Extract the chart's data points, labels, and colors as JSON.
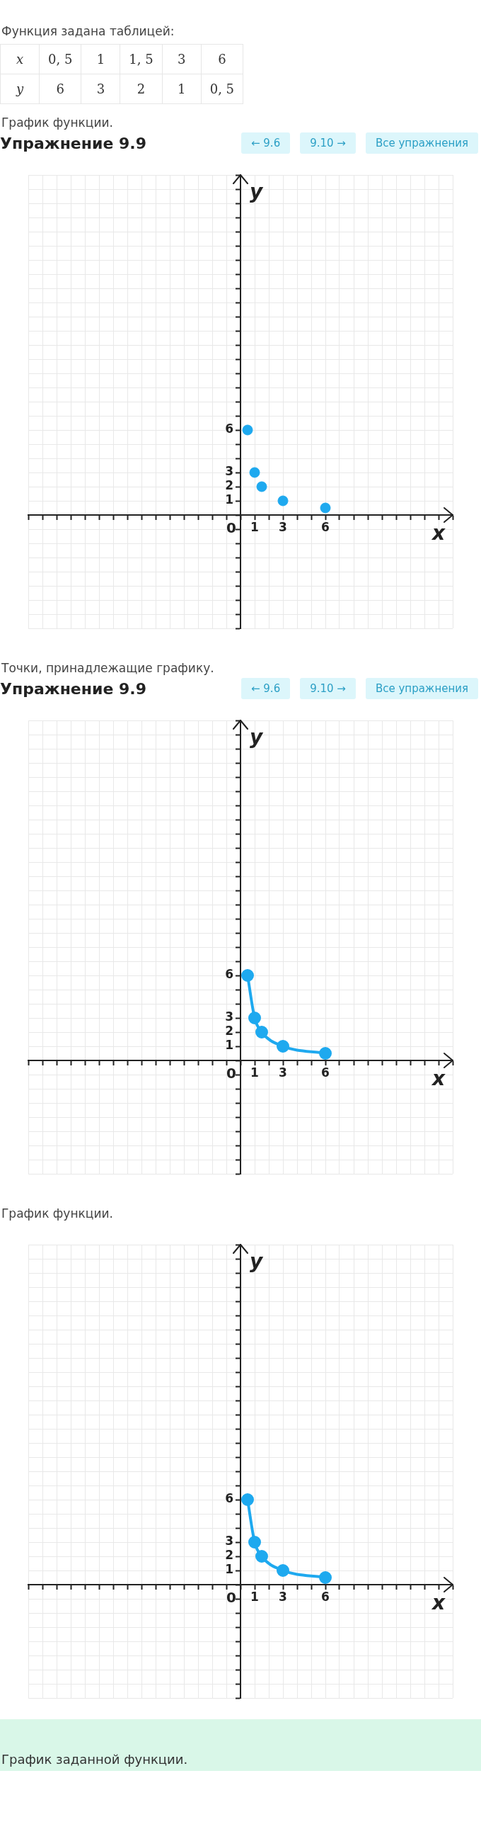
{
  "chart_data": [
    {
      "type": "other",
      "title": "Функция задана таблицей:",
      "xlabel": "x",
      "ylabel": "y",
      "categories": [
        "0, 5",
        "1",
        "1, 5",
        "3",
        "6"
      ],
      "annotations": [
        "6",
        "3",
        "2",
        "1",
        "0, 5",
        "График функции."
      ]
    },
    {
      "type": "scatter",
      "title": "Упражнение 9.9",
      "xlabel": "x",
      "ylabel": "y",
      "x": [
        0.5,
        1,
        1.5,
        3,
        6
      ],
      "values": [
        6,
        3,
        2,
        1,
        0.5
      ],
      "color": "#1ea9ef",
      "marker": "circle",
      "grid": true,
      "xlim": [
        -15,
        15
      ],
      "ylim": [
        -8,
        24
      ],
      "xticks": [
        {
          "value": -15,
          "label": null
        },
        {
          "value": -14,
          "label": null
        },
        {
          "value": -13,
          "label": null
        },
        {
          "value": -12,
          "label": null
        },
        {
          "value": -11,
          "label": null
        },
        {
          "value": -10,
          "label": null
        },
        {
          "value": -9,
          "label": null
        },
        {
          "value": -8,
          "label": null
        },
        {
          "value": -7,
          "label": null
        },
        {
          "value": -6,
          "label": null
        },
        {
          "value": -5,
          "label": null
        },
        {
          "value": -4,
          "label": null
        },
        {
          "value": -3,
          "label": null
        },
        {
          "value": -2,
          "label": null
        },
        {
          "value": -1,
          "label": null
        },
        {
          "value": 0,
          "label": null
        },
        1,
        {
          "value": 2,
          "label": null
        },
        3,
        {
          "value": 4,
          "label": null
        },
        {
          "value": 5,
          "label": null
        },
        6,
        {
          "value": 7,
          "label": null
        },
        {
          "value": 8,
          "label": null
        },
        {
          "value": 9,
          "label": null
        },
        {
          "value": 10,
          "label": null
        },
        {
          "value": 11,
          "label": null
        },
        {
          "value": 12,
          "label": null
        },
        {
          "value": 13,
          "label": null
        },
        {
          "value": 14,
          "label": null
        },
        {
          "value": 15,
          "label": null
        }
      ],
      "yticks": [
        {
          "value": -8,
          "label": null
        },
        {
          "value": -7,
          "label": null
        },
        {
          "value": -6,
          "label": null
        },
        {
          "value": -5,
          "label": null
        },
        {
          "value": -4,
          "label": null
        },
        {
          "value": -3,
          "label": null
        },
        {
          "value": -2,
          "label": null
        },
        {
          "value": -1,
          "label": null
        },
        {
          "value": 0,
          "label": null
        },
        1,
        2,
        3,
        {
          "value": 4,
          "label": null
        },
        {
          "value": 5,
          "label": null
        },
        6,
        {
          "value": 7,
          "label": null
        },
        {
          "value": 8,
          "label": null
        },
        {
          "value": 9,
          "label": null
        },
        {
          "value": 10,
          "label": null
        },
        {
          "value": 11,
          "label": null
        },
        {
          "value": 12,
          "label": null
        },
        {
          "value": 13,
          "label": null
        },
        {
          "value": 14,
          "label": null
        },
        {
          "value": 15,
          "label": null
        },
        {
          "value": 16,
          "label": null
        },
        {
          "value": 17,
          "label": null
        },
        {
          "value": 18,
          "label": null
        },
        {
          "value": 19,
          "label": null
        },
        {
          "value": 20,
          "label": null
        },
        {
          "value": 21,
          "label": null
        },
        {
          "value": 22,
          "label": null
        },
        {
          "value": 23,
          "label": null
        },
        {
          "value": 24,
          "label": null
        }
      ],
      "annotations": [
        "0",
        "← 9.6",
        "9.10 →",
        "Все упражнения",
        "Точки, принадлежащие графику."
      ]
    },
    {
      "type": "line",
      "title": "Упражнение 9.9",
      "xlabel": "x",
      "ylabel": "y",
      "x": [
        0.5,
        1,
        1.5,
        3,
        6
      ],
      "values": [
        6,
        3,
        2,
        1,
        0.5
      ],
      "color": "#1ea9ef",
      "marker": "circle",
      "line_style": "solid",
      "grid": true,
      "xlim": [
        -15,
        15
      ],
      "ylim": [
        -8,
        24
      ],
      "xticks": [
        {
          "value": -15,
          "label": null
        },
        {
          "value": -14,
          "label": null
        },
        {
          "value": -13,
          "label": null
        },
        {
          "value": -12,
          "label": null
        },
        {
          "value": -11,
          "label": null
        },
        {
          "value": -10,
          "label": null
        },
        {
          "value": -9,
          "label": null
        },
        {
          "value": -8,
          "label": null
        },
        {
          "value": -7,
          "label": null
        },
        {
          "value": -6,
          "label": null
        },
        {
          "value": -5,
          "label": null
        },
        {
          "value": -4,
          "label": null
        },
        {
          "value": -3,
          "label": null
        },
        {
          "value": -2,
          "label": null
        },
        {
          "value": -1,
          "label": null
        },
        {
          "value": 0,
          "label": null
        },
        1,
        {
          "value": 2,
          "label": null
        },
        3,
        {
          "value": 4,
          "label": null
        },
        {
          "value": 5,
          "label": null
        },
        6,
        {
          "value": 7,
          "label": null
        },
        {
          "value": 8,
          "label": null
        },
        {
          "value": 9,
          "label": null
        },
        {
          "value": 10,
          "label": null
        },
        {
          "value": 11,
          "label": null
        },
        {
          "value": 12,
          "label": null
        },
        {
          "value": 13,
          "label": null
        },
        {
          "value": 14,
          "label": null
        },
        {
          "value": 15,
          "label": null
        }
      ],
      "yticks": [
        {
          "value": -8,
          "label": null
        },
        {
          "value": -7,
          "label": null
        },
        {
          "value": -6,
          "label": null
        },
        {
          "value": -5,
          "label": null
        },
        {
          "value": -4,
          "label": null
        },
        {
          "value": -3,
          "label": null
        },
        {
          "value": -2,
          "label": null
        },
        {
          "value": -1,
          "label": null
        },
        {
          "value": 0,
          "label": null
        },
        1,
        2,
        3,
        {
          "value": 4,
          "label": null
        },
        {
          "value": 5,
          "label": null
        },
        6,
        {
          "value": 7,
          "label": null
        },
        {
          "value": 8,
          "label": null
        },
        {
          "value": 9,
          "label": null
        },
        {
          "value": 10,
          "label": null
        },
        {
          "value": 11,
          "label": null
        },
        {
          "value": 12,
          "label": null
        },
        {
          "value": 13,
          "label": null
        },
        {
          "value": 14,
          "label": null
        },
        {
          "value": 15,
          "label": null
        },
        {
          "value": 16,
          "label": null
        },
        {
          "value": 17,
          "label": null
        },
        {
          "value": 18,
          "label": null
        },
        {
          "value": 19,
          "label": null
        },
        {
          "value": 20,
          "label": null
        },
        {
          "value": 21,
          "label": null
        },
        {
          "value": 22,
          "label": null
        },
        {
          "value": 23,
          "label": null
        },
        {
          "value": 24,
          "label": null
        }
      ],
      "annotations": [
        "0",
        "← 9.6",
        "9.10 →",
        "Все упражнения",
        "График функции."
      ]
    },
    {
      "type": "line",
      "xlabel": "x",
      "ylabel": "y",
      "x": [
        0.5,
        1,
        1.5,
        3,
        6
      ],
      "values": [
        6,
        3,
        2,
        1,
        0.5
      ],
      "color": "#1ea9ef",
      "marker": "circle",
      "line_style": "solid",
      "grid": true,
      "xlim": [
        -15,
        15
      ],
      "ylim": [
        -8,
        24
      ],
      "xticks": [
        {
          "value": -15,
          "label": null
        },
        {
          "value": -14,
          "label": null
        },
        {
          "value": -13,
          "label": null
        },
        {
          "value": -12,
          "label": null
        },
        {
          "value": -11,
          "label": null
        },
        {
          "value": -10,
          "label": null
        },
        {
          "value": -9,
          "label": null
        },
        {
          "value": -8,
          "label": null
        },
        {
          "value": -7,
          "label": null
        },
        {
          "value": -6,
          "label": null
        },
        {
          "value": -5,
          "label": null
        },
        {
          "value": -4,
          "label": null
        },
        {
          "value": -3,
          "label": null
        },
        {
          "value": -2,
          "label": null
        },
        {
          "value": -1,
          "label": null
        },
        {
          "value": 0,
          "label": null
        },
        1,
        {
          "value": 2,
          "label": null
        },
        3,
        {
          "value": 4,
          "label": null
        },
        {
          "value": 5,
          "label": null
        },
        6,
        {
          "value": 7,
          "label": null
        },
        {
          "value": 8,
          "label": null
        },
        {
          "value": 9,
          "label": null
        },
        {
          "value": 10,
          "label": null
        },
        {
          "value": 11,
          "label": null
        },
        {
          "value": 12,
          "label": null
        },
        {
          "value": 13,
          "label": null
        },
        {
          "value": 14,
          "label": null
        },
        {
          "value": 15,
          "label": null
        }
      ],
      "yticks": [
        {
          "value": -8,
          "label": null
        },
        {
          "value": -7,
          "label": null
        },
        {
          "value": -6,
          "label": null
        },
        {
          "value": -5,
          "label": null
        },
        {
          "value": -4,
          "label": null
        },
        {
          "value": -3,
          "label": null
        },
        {
          "value": -2,
          "label": null
        },
        {
          "value": -1,
          "label": null
        },
        {
          "value": 0,
          "label": null
        },
        1,
        2,
        3,
        {
          "value": 4,
          "label": null
        },
        {
          "value": 5,
          "label": null
        },
        6,
        {
          "value": 7,
          "label": null
        },
        {
          "value": 8,
          "label": null
        },
        {
          "value": 9,
          "label": null
        },
        {
          "value": 10,
          "label": null
        },
        {
          "value": 11,
          "label": null
        },
        {
          "value": 12,
          "label": null
        },
        {
          "value": 13,
          "label": null
        },
        {
          "value": 14,
          "label": null
        },
        {
          "value": 15,
          "label": null
        },
        {
          "value": 16,
          "label": null
        },
        {
          "value": 17,
          "label": null
        },
        {
          "value": 18,
          "label": null
        },
        {
          "value": 19,
          "label": null
        },
        {
          "value": 20,
          "label": null
        },
        {
          "value": 21,
          "label": null
        },
        {
          "value": 22,
          "label": null
        },
        {
          "value": 23,
          "label": null
        },
        {
          "value": 24,
          "label": null
        }
      ],
      "annotations": [
        "0",
        "График заданной функции."
      ]
    }
  ]
}
